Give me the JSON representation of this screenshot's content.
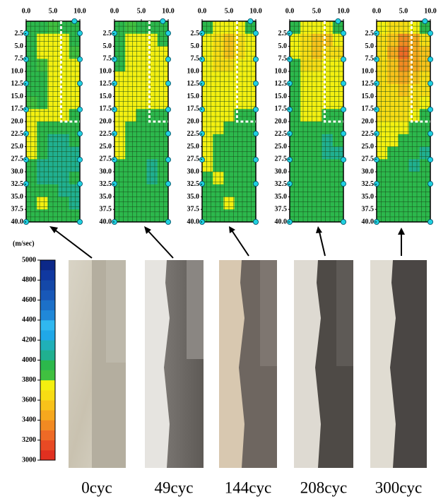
{
  "chart_data": {
    "type": "heatmap",
    "xlim": [
      0,
      10
    ],
    "ylim": [
      0,
      40
    ],
    "xticks": [
      {
        "value": 0,
        "label": "0.0"
      },
      {
        "value": 5,
        "label": "5.0"
      },
      {
        "value": 10,
        "label": "10.0"
      }
    ],
    "yticks": [
      2.5,
      {
        "value": 5,
        "label": "5.0"
      },
      7.5,
      {
        "value": 10,
        "label": "10.0"
      },
      12.5,
      {
        "value": 15,
        "label": "15.0"
      },
      17.5,
      {
        "value": 20,
        "label": "20.0"
      },
      22.5,
      {
        "value": 25,
        "label": "25.0"
      },
      27.5,
      {
        "value": 30,
        "label": "30.0"
      },
      32.5,
      {
        "value": 35,
        "label": "35.0"
      },
      37.5,
      {
        "value": 40,
        "label": "40.0"
      }
    ],
    "colorbar": {
      "title": "(m/sec)",
      "lim": [
        3000,
        5000
      ],
      "ticks": [
        3000,
        3200,
        3400,
        3600,
        3800,
        4000,
        4200,
        4400,
        4600,
        4800,
        5000
      ],
      "colors": [
        "#e03020",
        "#e84a24",
        "#ee6a26",
        "#f28a22",
        "#f6a81e",
        "#f8c21a",
        "#f8dc14",
        "#f4f010",
        "#40c040",
        "#2cb84c",
        "#20b090",
        "#20b0b8",
        "#20a8e8",
        "#30b8f0",
        "#2088d8",
        "#1c70c8",
        "#1858b8",
        "#1448a8",
        "#1038a0",
        "#0c2888"
      ]
    },
    "panels": [
      {
        "label": "0cyc",
        "values": [
          [
            3900,
            3900,
            3850,
            3900,
            3900
          ],
          [
            3900,
            3700,
            3700,
            3700,
            3900
          ],
          [
            3900,
            3700,
            3700,
            3700,
            3800
          ],
          [
            3900,
            3850,
            3700,
            3700,
            3700
          ],
          [
            3900,
            3900,
            3700,
            3700,
            3700
          ],
          [
            3900,
            3900,
            3700,
            3700,
            3700
          ],
          [
            3850,
            3900,
            3700,
            3700,
            3700
          ],
          [
            3700,
            3700,
            3700,
            3700,
            3900
          ],
          [
            3700,
            3900,
            3900,
            3900,
            3900
          ],
          [
            3700,
            3950,
            4000,
            4000,
            3900
          ],
          [
            3700,
            3900,
            4000,
            4050,
            4000
          ],
          [
            3900,
            4000,
            4050,
            4050,
            4000
          ],
          [
            3900,
            4000,
            4000,
            4000,
            3900
          ],
          [
            3900,
            3900,
            3900,
            4000,
            4000
          ],
          [
            3900,
            3700,
            3900,
            3950,
            4050
          ],
          [
            3900,
            3900,
            3900,
            3900,
            3900
          ]
        ]
      },
      {
        "label": "49cyc",
        "values": [
          [
            3900,
            3850,
            3900,
            3900,
            3900
          ],
          [
            3900,
            3700,
            3700,
            3700,
            3900
          ],
          [
            3900,
            3700,
            3700,
            3700,
            3700
          ],
          [
            3900,
            3700,
            3700,
            3700,
            3700
          ],
          [
            3700,
            3700,
            3700,
            3700,
            3700
          ],
          [
            3700,
            3700,
            3700,
            3700,
            3700
          ],
          [
            3700,
            3700,
            3700,
            3700,
            3700
          ],
          [
            3700,
            3700,
            3900,
            3900,
            3900
          ],
          [
            3700,
            3900,
            3900,
            3900,
            3900
          ],
          [
            3700,
            3900,
            3900,
            3950,
            3900
          ],
          [
            3700,
            3900,
            3900,
            3950,
            3900
          ],
          [
            3900,
            3900,
            3950,
            4000,
            3900
          ],
          [
            3900,
            3900,
            3950,
            4000,
            3950
          ],
          [
            3900,
            3900,
            3900,
            3950,
            3900
          ],
          [
            3900,
            3900,
            3900,
            3900,
            3900
          ],
          [
            3900,
            3900,
            3900,
            3900,
            3900
          ]
        ]
      },
      {
        "label": "144cyc",
        "values": [
          [
            3900,
            3700,
            3700,
            3700,
            3900
          ],
          [
            3700,
            3600,
            3500,
            3600,
            3700
          ],
          [
            3700,
            3600,
            3500,
            3600,
            3700
          ],
          [
            3700,
            3650,
            3600,
            3700,
            3700
          ],
          [
            3700,
            3700,
            3700,
            3700,
            3700
          ],
          [
            3700,
            3700,
            3700,
            3700,
            3700
          ],
          [
            3700,
            3700,
            3700,
            3700,
            3700
          ],
          [
            3700,
            3700,
            3700,
            3900,
            3900
          ],
          [
            3700,
            3700,
            3900,
            3900,
            3900
          ],
          [
            3700,
            3900,
            3900,
            3900,
            3950
          ],
          [
            3700,
            3900,
            3900,
            3950,
            3950
          ],
          [
            3700,
            3900,
            3950,
            3950,
            3900
          ],
          [
            3900,
            3700,
            3900,
            3900,
            3900
          ],
          [
            3900,
            3900,
            3900,
            3900,
            3900
          ],
          [
            3900,
            3900,
            3700,
            3900,
            3900
          ],
          [
            3900,
            3900,
            3900,
            3900,
            3900
          ]
        ]
      },
      {
        "label": "208cyc",
        "values": [
          [
            3900,
            3700,
            3700,
            3700,
            3900
          ],
          [
            3700,
            3600,
            3500,
            3550,
            3700
          ],
          [
            3700,
            3600,
            3550,
            3600,
            3650
          ],
          [
            3900,
            3650,
            3650,
            3700,
            3700
          ],
          [
            3900,
            3700,
            3700,
            3700,
            3700
          ],
          [
            3900,
            3700,
            3700,
            3700,
            3700
          ],
          [
            3900,
            3700,
            3700,
            3700,
            3700
          ],
          [
            3900,
            3700,
            3700,
            3900,
            3900
          ],
          [
            3900,
            3900,
            3900,
            3950,
            3900
          ],
          [
            3900,
            3900,
            3950,
            4000,
            3950
          ],
          [
            3900,
            3900,
            3950,
            4000,
            4000
          ],
          [
            3900,
            3900,
            3950,
            3950,
            3950
          ],
          [
            3900,
            3900,
            3900,
            3950,
            3900
          ],
          [
            3900,
            3900,
            3900,
            3900,
            3900
          ],
          [
            3900,
            3900,
            3900,
            3900,
            3900
          ],
          [
            3900,
            3900,
            3900,
            3900,
            3900
          ]
        ]
      },
      {
        "label": "300cyc",
        "values": [
          [
            3700,
            3650,
            3600,
            3700,
            3900
          ],
          [
            3650,
            3500,
            3300,
            3450,
            3600
          ],
          [
            3650,
            3450,
            3200,
            3400,
            3550
          ],
          [
            3650,
            3500,
            3300,
            3450,
            3550
          ],
          [
            3650,
            3550,
            3450,
            3500,
            3600
          ],
          [
            3600,
            3600,
            3550,
            3600,
            3650
          ],
          [
            3650,
            3650,
            3650,
            3650,
            3700
          ],
          [
            3650,
            3650,
            3650,
            3700,
            3900
          ],
          [
            3700,
            3700,
            3700,
            3900,
            3900
          ],
          [
            3700,
            3700,
            3900,
            3950,
            3950
          ],
          [
            3700,
            3900,
            3900,
            3950,
            4000
          ],
          [
            3900,
            3900,
            3950,
            4000,
            3950
          ],
          [
            3900,
            3900,
            3900,
            3950,
            3950
          ],
          [
            3900,
            3900,
            3900,
            3900,
            3900
          ],
          [
            3900,
            3900,
            3900,
            3900,
            3900
          ],
          [
            3900,
            3900,
            3900,
            3900,
            3900
          ]
        ]
      }
    ]
  }
}
